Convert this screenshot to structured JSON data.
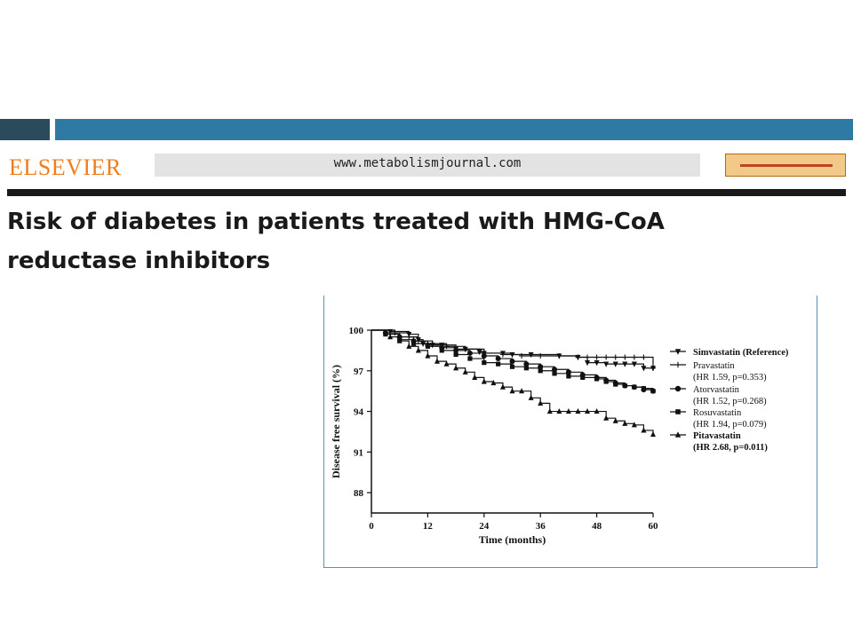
{
  "header": {
    "brand": "ELSEVIER",
    "url": "www.metabolismjournal.com",
    "title": "Risk of diabetes in patients treated with HMG-CoA reductase inhibitors"
  },
  "chart_data": {
    "type": "line",
    "title": "",
    "xlabel": "Time  (months)",
    "ylabel": "Disease free survival  (%)",
    "xlim": [
      0,
      60
    ],
    "ylim": [
      86.5,
      100
    ],
    "xticks": [
      0,
      12,
      24,
      36,
      48,
      60
    ],
    "yticks": [
      88,
      91,
      94,
      97,
      100
    ],
    "legend_position": "right",
    "series": [
      {
        "name": "Simvastatin (Reference)",
        "sublabel": "",
        "bold": true,
        "marker": "triangle-down",
        "x": [
          0,
          4,
          8,
          10,
          11,
          13,
          15,
          18,
          20,
          23,
          24,
          28,
          30,
          34,
          40,
          44,
          46,
          48,
          50,
          52,
          54,
          56,
          58,
          60
        ],
        "y": [
          100,
          99.9,
          99.7,
          99.3,
          99.0,
          98.9,
          98.9,
          98.6,
          98.6,
          98.4,
          98.3,
          98.3,
          98.2,
          98.2,
          98.1,
          98.0,
          97.6,
          97.6,
          97.5,
          97.5,
          97.5,
          97.5,
          97.2,
          97.2
        ]
      },
      {
        "name": "Pravastatin",
        "sublabel": "(HR 1.59, p=0.353)",
        "bold": false,
        "marker": "plus",
        "x": [
          0,
          5,
          8,
          10,
          13,
          16,
          20,
          24,
          28,
          32,
          36,
          40,
          44,
          46,
          48,
          50,
          52,
          54,
          56,
          58,
          60
        ],
        "y": [
          100,
          99.8,
          99.5,
          99.2,
          99.0,
          98.8,
          98.6,
          98.3,
          98.2,
          98.1,
          98.1,
          98.1,
          98.0,
          98.0,
          98.0,
          98.0,
          98.0,
          98.0,
          98.0,
          98.0,
          97.2
        ]
      },
      {
        "name": "Atorvastatin",
        "sublabel": "(HR 1.52, p=0.268)",
        "bold": false,
        "marker": "circle",
        "x": [
          0,
          3,
          6,
          9,
          12,
          15,
          18,
          21,
          24,
          27,
          30,
          33,
          36,
          39,
          42,
          45,
          48,
          50,
          52,
          54,
          56,
          58,
          60
        ],
        "y": [
          100,
          99.8,
          99.5,
          99.2,
          98.9,
          98.7,
          98.5,
          98.3,
          98.1,
          97.9,
          97.7,
          97.5,
          97.3,
          97.1,
          96.9,
          96.7,
          96.5,
          96.3,
          96.1,
          95.9,
          95.8,
          95.6,
          95.5
        ]
      },
      {
        "name": "Rosuvastatin",
        "sublabel": "(HR 1.94, p=0.079)",
        "bold": false,
        "marker": "square",
        "x": [
          0,
          3,
          6,
          9,
          12,
          15,
          18,
          21,
          24,
          27,
          30,
          33,
          36,
          39,
          42,
          45,
          48,
          50,
          52,
          54,
          56,
          58,
          60
        ],
        "y": [
          100,
          99.7,
          99.3,
          99.0,
          98.8,
          98.5,
          98.2,
          97.9,
          97.6,
          97.5,
          97.3,
          97.2,
          97.0,
          96.8,
          96.6,
          96.5,
          96.4,
          96.2,
          96.0,
          95.9,
          95.8,
          95.7,
          95.5
        ]
      },
      {
        "name": "Pitavastatin",
        "sublabel": "(HR 2.68, p=0.011)",
        "bold": true,
        "marker": "triangle-up",
        "x": [
          0,
          4,
          6,
          8,
          10,
          12,
          14,
          16,
          18,
          20,
          22,
          24,
          26,
          28,
          30,
          32,
          34,
          36,
          38,
          40,
          42,
          44,
          46,
          48,
          50,
          52,
          54,
          56,
          58,
          60
        ],
        "y": [
          100,
          99.5,
          99.2,
          98.8,
          98.5,
          98.1,
          97.7,
          97.5,
          97.2,
          96.9,
          96.5,
          96.2,
          96.1,
          95.8,
          95.5,
          95.5,
          95.0,
          94.6,
          94.0,
          94.0,
          94.0,
          94.0,
          94.0,
          94.0,
          93.5,
          93.3,
          93.1,
          93.0,
          92.6,
          92.3
        ]
      }
    ]
  }
}
